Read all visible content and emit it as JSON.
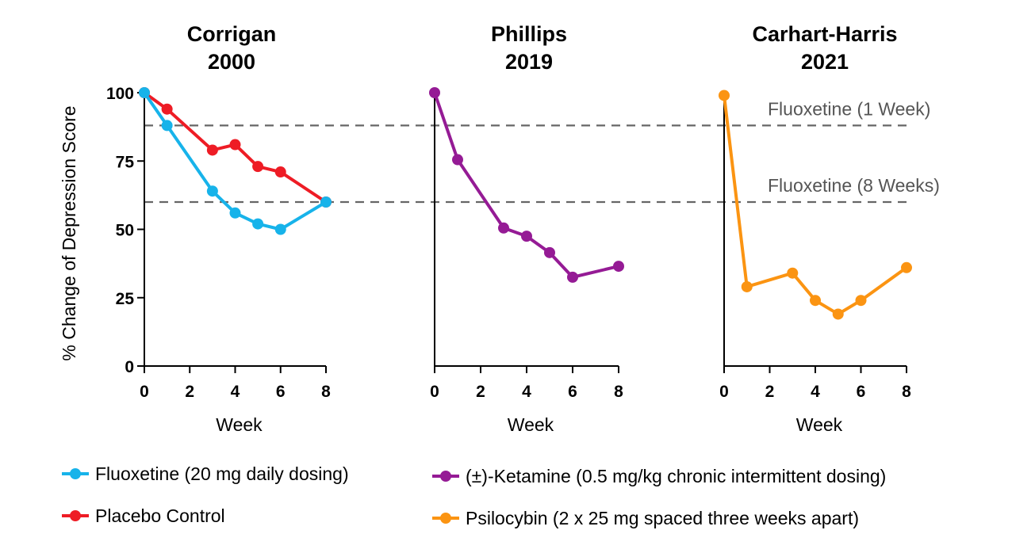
{
  "chart_data": [
    {
      "type": "line",
      "title": [
        "Corrigan",
        "2000"
      ],
      "xlabel": "Week",
      "ylabel": "% Change of Depression Score",
      "xlim": [
        0,
        8
      ],
      "ylim": [
        0,
        100
      ],
      "xticks": [
        0,
        2,
        4,
        6,
        8
      ],
      "yticks": [
        0,
        25,
        50,
        75,
        100
      ],
      "series": [
        {
          "name": "Placebo Control",
          "color": "#ee1c25",
          "x": [
            0,
            1,
            3,
            4,
            5,
            6,
            8
          ],
          "y": [
            100,
            94,
            79,
            81,
            73,
            71,
            60
          ]
        },
        {
          "name": "Fluoxetine (20 mg daily dosing)",
          "color": "#17b3ea",
          "x": [
            0,
            1,
            3,
            4,
            5,
            6,
            8
          ],
          "y": [
            100,
            88,
            64,
            56,
            52,
            50,
            60
          ]
        }
      ]
    },
    {
      "type": "line",
      "title": [
        "Phillips",
        "2019"
      ],
      "xlabel": "Week",
      "xlim": [
        0,
        8
      ],
      "ylim": [
        0,
        100
      ],
      "xticks": [
        0,
        2,
        4,
        6,
        8
      ],
      "series": [
        {
          "name": "(±)-Ketamine (0.5 mg/kg chronic intermittent dosing)",
          "color": "#951b95",
          "x": [
            0,
            1,
            3,
            4,
            5,
            6,
            8
          ],
          "y": [
            100,
            75.5,
            50.5,
            47.5,
            41.5,
            32.5,
            36.5
          ]
        }
      ]
    },
    {
      "type": "line",
      "title": [
        "Carhart-Harris",
        "2021"
      ],
      "xlabel": "Week",
      "xlim": [
        0,
        8
      ],
      "ylim": [
        0,
        100
      ],
      "xticks": [
        0,
        2,
        4,
        6,
        8
      ],
      "series": [
        {
          "name": "Psilocybin (2 x 25 mg spaced three weeks apart)",
          "color": "#fb9412",
          "x": [
            0,
            1,
            3,
            4,
            5,
            6,
            8
          ],
          "y": [
            99,
            29,
            34,
            24,
            19,
            24,
            36
          ]
        }
      ]
    }
  ],
  "reference_lines": [
    {
      "label": "Fluoxetine (1 Week)",
      "y": 88,
      "color": "#666666"
    },
    {
      "label": "Fluoxetine (8 Weeks)",
      "y": 60,
      "color": "#666666"
    }
  ],
  "legend": [
    {
      "label": "Fluoxetine (20 mg daily dosing)",
      "color": "#17b3ea"
    },
    {
      "label": "Placebo Control",
      "color": "#ee1c25"
    },
    {
      "label": "(±)-Ketamine (0.5 mg/kg chronic intermittent dosing)",
      "color": "#951b95"
    },
    {
      "label": "Psilocybin (2 x 25 mg spaced three weeks apart)",
      "color": "#fb9412"
    }
  ]
}
